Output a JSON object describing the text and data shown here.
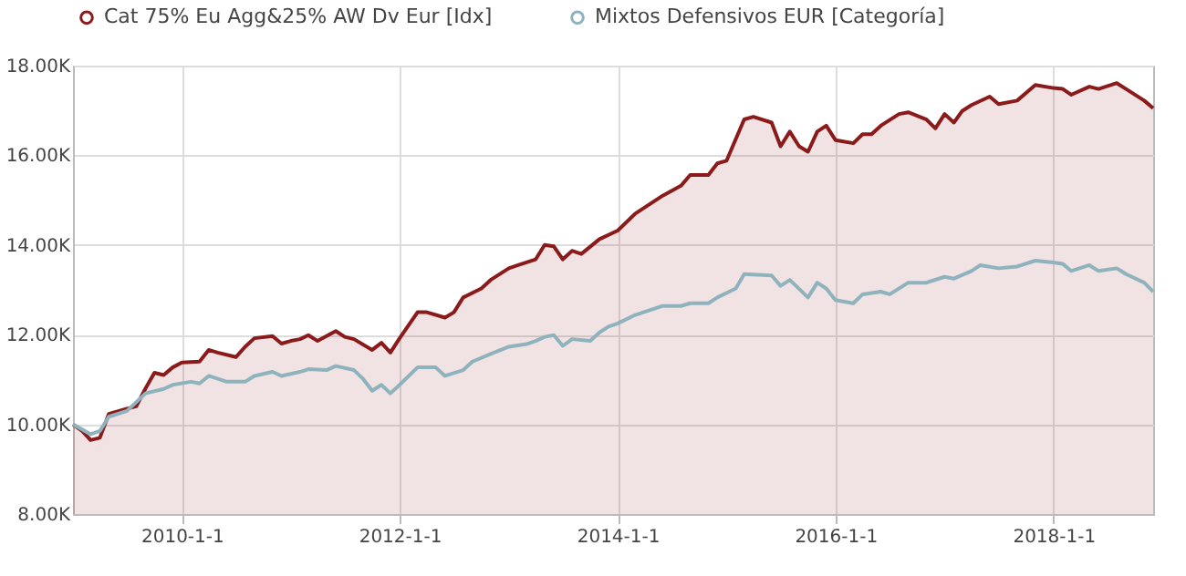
{
  "chart_data": {
    "type": "line",
    "xlim": [
      "2009-01-01",
      "2018-12-01"
    ],
    "xticks": [
      {
        "value": "2010-01-01",
        "label": "2010-1-1"
      },
      {
        "value": "2012-01-01",
        "label": "2012-1-1"
      },
      {
        "value": "2014-01-01",
        "label": "2014-1-1"
      },
      {
        "value": "2016-01-01",
        "label": "2016-1-1"
      },
      {
        "value": "2018-01-01",
        "label": "2018-1-1"
      }
    ],
    "ylim": [
      8000,
      18000
    ],
    "yticks": [
      {
        "value": 8000,
        "label": "8.00K"
      },
      {
        "value": 10000,
        "label": "10.00K"
      },
      {
        "value": 12000,
        "label": "12.00K"
      },
      {
        "value": 14000,
        "label": "14.00K"
      },
      {
        "value": 16000,
        "label": "16.00K"
      },
      {
        "value": 18000,
        "label": "18.00K"
      }
    ],
    "grid": true,
    "legend": "top left",
    "marker": "none",
    "line_style": "solid",
    "series": [
      {
        "name": "Cat 75% Eu Agg&25% AW Dv Eur [Idx]",
        "type": "area",
        "color": "#8b1a1a",
        "x": [
          "2009-01",
          "2009-02",
          "2009-03",
          "2009-04",
          "2009-05",
          "2009-07",
          "2009-08",
          "2009-09",
          "2009-10",
          "2009-11",
          "2009-12",
          "2010-01",
          "2010-03",
          "2010-04",
          "2010-05",
          "2010-07",
          "2010-08",
          "2010-09",
          "2010-11",
          "2010-12",
          "2011-01",
          "2011-02",
          "2011-03",
          "2011-04",
          "2011-06",
          "2011-07",
          "2011-08",
          "2011-10",
          "2011-11",
          "2011-12",
          "2012-01",
          "2012-03",
          "2012-04",
          "2012-06",
          "2012-07",
          "2012-08",
          "2012-10",
          "2012-11",
          "2013-01",
          "2013-02",
          "2013-04",
          "2013-05",
          "2013-06",
          "2013-07",
          "2013-08",
          "2013-09",
          "2013-11",
          "2014-01",
          "2014-03",
          "2014-06",
          "2014-08",
          "2014-09",
          "2014-11",
          "2014-12",
          "2015-01",
          "2015-03",
          "2015-04",
          "2015-06",
          "2015-07",
          "2015-08",
          "2015-09",
          "2015-10",
          "2015-11",
          "2015-12",
          "2016-01",
          "2016-03",
          "2016-04",
          "2016-05",
          "2016-06",
          "2016-08",
          "2016-09",
          "2016-11",
          "2016-12",
          "2017-01",
          "2017-02",
          "2017-03",
          "2017-04",
          "2017-06",
          "2017-07",
          "2017-09",
          "2017-11",
          "2018-01",
          "2018-02",
          "2018-03",
          "2018-05",
          "2018-06",
          "2018-08",
          "2018-09",
          "2018-11",
          "2018-12"
        ],
        "values": [
          10000,
          9850,
          9650,
          9700,
          10230,
          10350,
          10400,
          10800,
          11150,
          11100,
          11270,
          11380,
          11400,
          11660,
          11600,
          11500,
          11730,
          11920,
          11970,
          11800,
          11860,
          11900,
          11990,
          11860,
          12080,
          11950,
          11900,
          11660,
          11820,
          11600,
          11920,
          12500,
          12500,
          12380,
          12500,
          12830,
          13030,
          13220,
          13480,
          13550,
          13680,
          14000,
          13970,
          13680,
          13870,
          13800,
          14130,
          14320,
          14700,
          15100,
          15320,
          15560,
          15560,
          15820,
          15880,
          16800,
          16860,
          16730,
          16200,
          16530,
          16200,
          16080,
          16530,
          16660,
          16340,
          16270,
          16470,
          16470,
          16660,
          16920,
          16960,
          16800,
          16600,
          16920,
          16730,
          16990,
          17120,
          17310,
          17140,
          17220,
          17570,
          17500,
          17480,
          17350,
          17530,
          17480,
          17610,
          17480,
          17220,
          17050
        ]
      },
      {
        "name": "Mixtos Defensivos EUR [Categoría]",
        "color": "#8fb3bd",
        "x": [
          "2009-01",
          "2009-03",
          "2009-04",
          "2009-05",
          "2009-07",
          "2009-09",
          "2009-11",
          "2009-12",
          "2010-02",
          "2010-03",
          "2010-04",
          "2010-06",
          "2010-08",
          "2010-09",
          "2010-11",
          "2010-12",
          "2011-02",
          "2011-03",
          "2011-05",
          "2011-06",
          "2011-08",
          "2011-09",
          "2011-10",
          "2011-11",
          "2011-12",
          "2012-01",
          "2012-03",
          "2012-05",
          "2012-06",
          "2012-08",
          "2012-09",
          "2012-11",
          "2013-01",
          "2013-03",
          "2013-04",
          "2013-05",
          "2013-06",
          "2013-07",
          "2013-08",
          "2013-10",
          "2013-11",
          "2013-12",
          "2014-01",
          "2014-03",
          "2014-06",
          "2014-08",
          "2014-09",
          "2014-11",
          "2014-12",
          "2015-02",
          "2015-03",
          "2015-06",
          "2015-07",
          "2015-08",
          "2015-10",
          "2015-11",
          "2015-12",
          "2016-01",
          "2016-03",
          "2016-04",
          "2016-06",
          "2016-07",
          "2016-09",
          "2016-11",
          "2017-01",
          "2017-02",
          "2017-04",
          "2017-05",
          "2017-07",
          "2017-09",
          "2017-11",
          "2018-01",
          "2018-02",
          "2018-03",
          "2018-05",
          "2018-06",
          "2018-08",
          "2018-09",
          "2018-11",
          "2018-12"
        ],
        "values": [
          10000,
          9780,
          9850,
          10170,
          10300,
          10690,
          10790,
          10880,
          10950,
          10910,
          11080,
          10950,
          10950,
          11080,
          11170,
          11080,
          11170,
          11230,
          11210,
          11300,
          11210,
          11010,
          10750,
          10880,
          10690,
          10880,
          11270,
          11270,
          11080,
          11210,
          11400,
          11570,
          11730,
          11790,
          11860,
          11950,
          11990,
          11750,
          11900,
          11860,
          12050,
          12180,
          12250,
          12440,
          12640,
          12640,
          12700,
          12700,
          12830,
          13030,
          13350,
          13320,
          13090,
          13220,
          12830,
          13160,
          13030,
          12770,
          12700,
          12900,
          12960,
          12900,
          13160,
          13160,
          13290,
          13250,
          13420,
          13550,
          13480,
          13520,
          13650,
          13610,
          13580,
          13420,
          13550,
          13420,
          13480,
          13350,
          13160,
          12960
        ]
      }
    ]
  }
}
